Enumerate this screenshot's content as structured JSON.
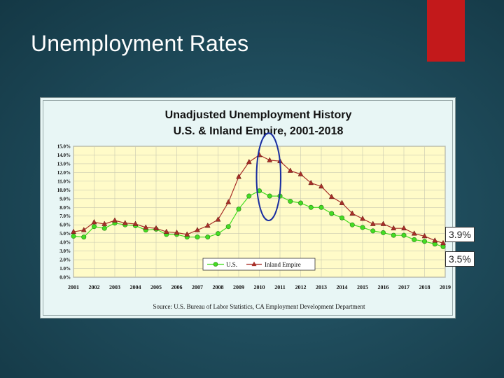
{
  "slide": {
    "title": "Unemployment Rates"
  },
  "callouts": {
    "inland_latest": "3.9%",
    "us_latest": "3.5%"
  },
  "colors": {
    "us": "#44dd22",
    "inland": "#a82f28",
    "plot_bg": "#fffbc8",
    "highlight_ellipse": "#1a2ea0",
    "accent": "#c3191b"
  },
  "chart_data": {
    "type": "line",
    "title": "Unadjusted Unemployment History",
    "subtitle": "U.S. & Inland Empire, 2001-2018",
    "source": "Source: U.S. Bureau of Labor Statistics, CA Employment Development Department",
    "x_ticks": [
      "2001",
      "2002",
      "2003",
      "2004",
      "2005",
      "2006",
      "2007",
      "2008",
      "2009",
      "2010",
      "2011",
      "2012",
      "2013",
      "2014",
      "2015",
      "2016",
      "2017",
      "2018",
      "2019"
    ],
    "y_ticks": [
      "0.0%",
      "1.0%",
      "2.0%",
      "3.0%",
      "4.0%",
      "5.0%",
      "6.0%",
      "7.0%",
      "8.0%",
      "9.0%",
      "10.0%",
      "11.0%",
      "12.0%",
      "13.0%",
      "14.0%",
      "15.0%"
    ],
    "xlim": [
      2001,
      2019
    ],
    "ylim": [
      0,
      15
    ],
    "grid": true,
    "legend": {
      "placement": "bottom-center",
      "entries": [
        "U.S.",
        "Inland Empire"
      ]
    },
    "highlight": {
      "shape": "ellipse",
      "x_range": [
        2010.0,
        2010.9
      ],
      "y_range": [
        6.5,
        16.5
      ]
    },
    "series": [
      {
        "name": "U.S.",
        "marker": "circle",
        "x": [
          2001.0,
          2001.5,
          2002.0,
          2002.5,
          2003.0,
          2003.5,
          2004.0,
          2004.5,
          2005.0,
          2005.5,
          2006.0,
          2006.5,
          2007.0,
          2007.5,
          2008.0,
          2008.5,
          2009.0,
          2009.5,
          2010.0,
          2010.5,
          2011.0,
          2011.5,
          2012.0,
          2012.5,
          2013.0,
          2013.5,
          2014.0,
          2014.5,
          2015.0,
          2015.5,
          2016.0,
          2016.5,
          2017.0,
          2017.5,
          2018.0,
          2018.5,
          2018.9
        ],
        "y": [
          4.7,
          4.6,
          5.8,
          5.6,
          6.2,
          6.0,
          5.9,
          5.4,
          5.5,
          4.9,
          4.9,
          4.6,
          4.6,
          4.6,
          5.0,
          5.8,
          7.8,
          9.3,
          9.9,
          9.3,
          9.3,
          8.7,
          8.5,
          8.0,
          8.0,
          7.3,
          6.8,
          6.0,
          5.7,
          5.3,
          5.1,
          4.8,
          4.8,
          4.3,
          4.1,
          3.8,
          3.5
        ]
      },
      {
        "name": "Inland Empire",
        "marker": "triangle",
        "x": [
          2001.0,
          2001.5,
          2002.0,
          2002.5,
          2003.0,
          2003.5,
          2004.0,
          2004.5,
          2005.0,
          2005.5,
          2006.0,
          2006.5,
          2007.0,
          2007.5,
          2008.0,
          2008.5,
          2009.0,
          2009.5,
          2010.0,
          2010.5,
          2011.0,
          2011.5,
          2012.0,
          2012.5,
          2013.0,
          2013.5,
          2014.0,
          2014.5,
          2015.0,
          2015.5,
          2016.0,
          2016.5,
          2017.0,
          2017.5,
          2018.0,
          2018.5,
          2018.9
        ],
        "y": [
          5.2,
          5.4,
          6.3,
          6.1,
          6.5,
          6.2,
          6.1,
          5.7,
          5.6,
          5.2,
          5.1,
          4.9,
          5.4,
          5.9,
          6.6,
          8.6,
          11.5,
          13.2,
          14.0,
          13.4,
          13.3,
          12.2,
          11.8,
          10.8,
          10.4,
          9.2,
          8.5,
          7.3,
          6.7,
          6.1,
          6.1,
          5.6,
          5.6,
          5.0,
          4.7,
          4.2,
          3.9
        ]
      }
    ]
  }
}
